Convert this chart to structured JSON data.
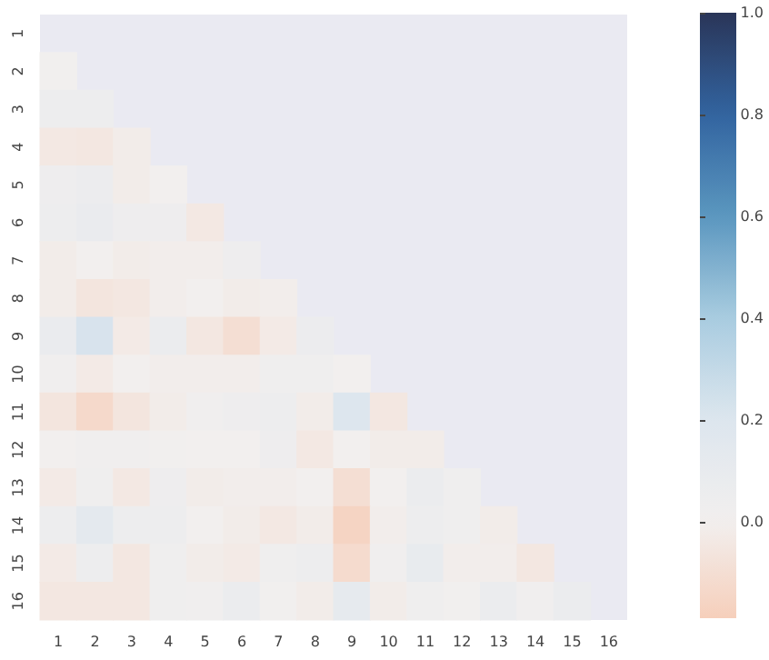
{
  "chart_data": {
    "type": "heatmap",
    "categories": [
      "1",
      "2",
      "3",
      "4",
      "5",
      "6",
      "7",
      "8",
      "9",
      "10",
      "11",
      "12",
      "13",
      "14",
      "15",
      "16"
    ],
    "y_categories": [
      "1",
      "2",
      "3",
      "4",
      "5",
      "6",
      "7",
      "8",
      "9",
      "10",
      "11",
      "12",
      "13",
      "14",
      "15",
      "16"
    ],
    "cells": [
      [
        null,
        null,
        null,
        null,
        null,
        null,
        null,
        null,
        null,
        null,
        null,
        null,
        null,
        null,
        null,
        null
      ],
      [
        0.01,
        null,
        null,
        null,
        null,
        null,
        null,
        null,
        null,
        null,
        null,
        null,
        null,
        null,
        null,
        null
      ],
      [
        0.05,
        0.05,
        null,
        null,
        null,
        null,
        null,
        null,
        null,
        null,
        null,
        null,
        null,
        null,
        null,
        null
      ],
      [
        -0.04,
        -0.05,
        -0.02,
        null,
        null,
        null,
        null,
        null,
        null,
        null,
        null,
        null,
        null,
        null,
        null,
        null
      ],
      [
        0.04,
        0.06,
        -0.02,
        0.0,
        null,
        null,
        null,
        null,
        null,
        null,
        null,
        null,
        null,
        null,
        null,
        null
      ],
      [
        0.05,
        0.08,
        0.04,
        0.04,
        -0.04,
        null,
        null,
        null,
        null,
        null,
        null,
        null,
        null,
        null,
        null,
        null
      ],
      [
        -0.02,
        0.0,
        -0.02,
        -0.01,
        -0.01,
        0.04,
        null,
        null,
        null,
        null,
        null,
        null,
        null,
        null,
        null,
        null
      ],
      [
        -0.02,
        -0.06,
        -0.05,
        -0.01,
        0.0,
        -0.02,
        -0.01,
        null,
        null,
        null,
        null,
        null,
        null,
        null,
        null,
        null
      ],
      [
        0.08,
        0.22,
        -0.03,
        0.07,
        -0.05,
        -0.1,
        -0.03,
        0.06,
        null,
        null,
        null,
        null,
        null,
        null,
        null,
        null
      ],
      [
        0.02,
        -0.03,
        0.0,
        -0.01,
        -0.01,
        -0.01,
        0.03,
        0.03,
        0.0,
        null,
        null,
        null,
        null,
        null,
        null,
        null
      ],
      [
        -0.06,
        -0.13,
        -0.06,
        -0.02,
        0.02,
        0.04,
        0.05,
        -0.02,
        0.2,
        -0.05,
        null,
        null,
        null,
        null,
        null,
        null
      ],
      [
        0.0,
        0.02,
        0.02,
        0.01,
        0.0,
        0.0,
        0.04,
        -0.04,
        0.0,
        -0.02,
        -0.02,
        null,
        null,
        null,
        null,
        null
      ],
      [
        -0.03,
        0.03,
        -0.04,
        0.04,
        -0.02,
        -0.01,
        -0.01,
        0.0,
        -0.1,
        0.0,
        0.07,
        0.03,
        null,
        null,
        null,
        null
      ],
      [
        0.05,
        0.13,
        0.05,
        0.05,
        0.0,
        -0.02,
        -0.04,
        -0.02,
        -0.16,
        -0.01,
        0.05,
        0.03,
        -0.02,
        null,
        null,
        null
      ],
      [
        -0.03,
        0.05,
        -0.05,
        0.03,
        -0.02,
        -0.03,
        0.03,
        0.05,
        -0.12,
        0.02,
        0.1,
        -0.01,
        -0.01,
        -0.05,
        null,
        null
      ],
      [
        -0.05,
        -0.05,
        -0.05,
        0.03,
        0.02,
        0.07,
        0.01,
        -0.02,
        0.11,
        -0.02,
        0.03,
        0.01,
        0.07,
        0.02,
        0.07,
        null
      ]
    ],
    "clim": [
      -0.19,
      1.0
    ],
    "cticks": [
      {
        "value": 0,
        "label": "0.0"
      },
      0.2,
      0.4,
      0.6,
      0.8,
      {
        "value": 1,
        "label": "1.0"
      }
    ]
  }
}
